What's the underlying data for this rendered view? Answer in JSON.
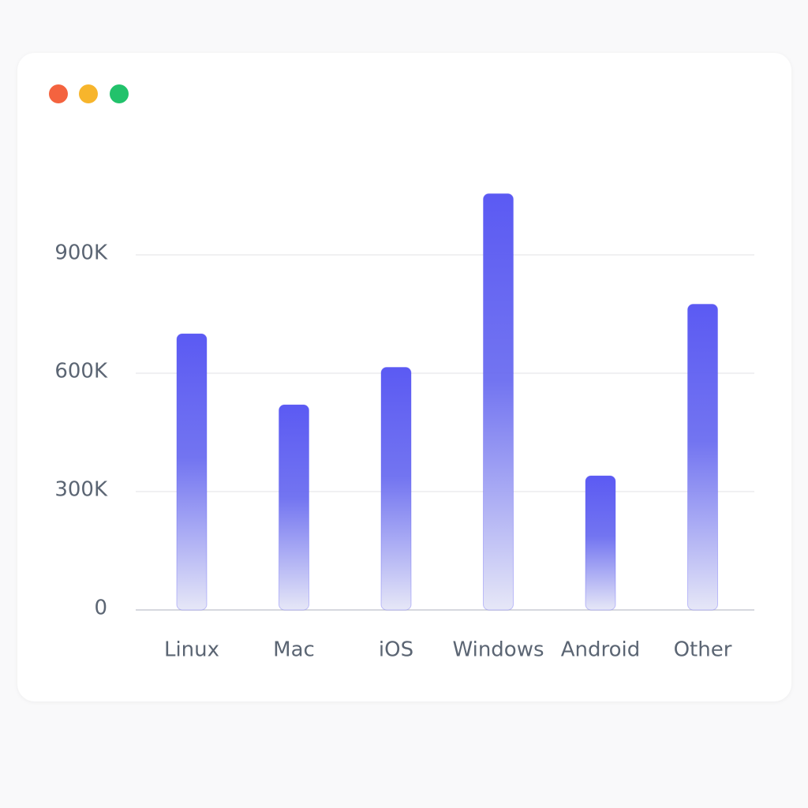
{
  "window": {
    "controls": [
      {
        "name": "close-dot",
        "color": "#f4633f"
      },
      {
        "name": "minimize-dot",
        "color": "#f7b52c"
      },
      {
        "name": "maximize-dot",
        "color": "#22c26b"
      }
    ]
  },
  "colors": {
    "bar_top": "#5b5af3",
    "bar_bottom": "#e6e7f7",
    "grid": "#e6e7ea",
    "axis": "#c9ccd3"
  },
  "chart_data": {
    "type": "bar",
    "title": "",
    "xlabel": "",
    "ylabel": "",
    "categories": [
      "Linux",
      "Mac",
      "iOS",
      "Windows",
      "Android",
      "Other"
    ],
    "values": [
      700000,
      520000,
      615000,
      1055000,
      340000,
      775000
    ],
    "yticks": [
      0,
      300000,
      600000,
      900000
    ],
    "ytick_labels": [
      "0",
      "300K",
      "600K",
      "900K"
    ],
    "ylim": [
      0,
      1100000
    ],
    "grid": true,
    "legend": "none"
  }
}
